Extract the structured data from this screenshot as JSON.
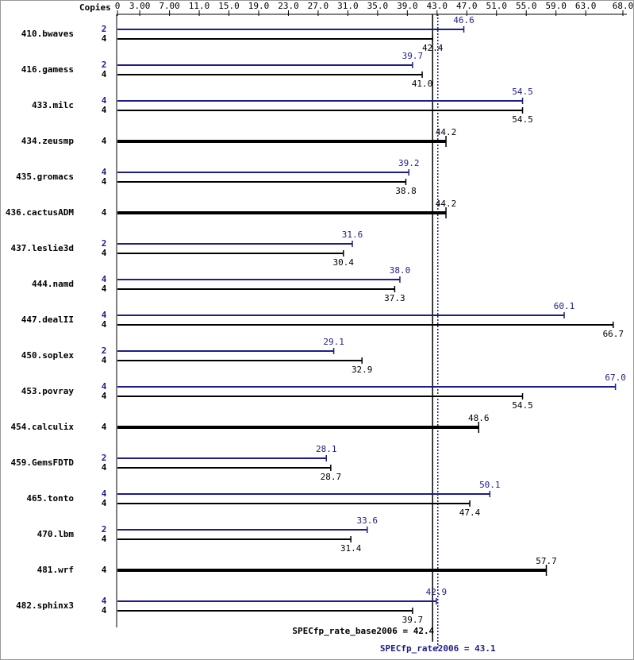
{
  "chart_data": {
    "type": "bar",
    "x_label": "Copies",
    "xlim": [
      0,
      68
    ],
    "xticks": [
      0,
      {
        "value": 3,
        "label": "3.00"
      },
      {
        "value": 7,
        "label": "7.00"
      },
      {
        "value": 11,
        "label": "11.0"
      },
      {
        "value": 15,
        "label": "15.0"
      },
      {
        "value": 19,
        "label": "19.0"
      },
      {
        "value": 23,
        "label": "23.0"
      },
      {
        "value": 27,
        "label": "27.0"
      },
      {
        "value": 31,
        "label": "31.0"
      },
      {
        "value": 35,
        "label": "35.0"
      },
      {
        "value": 39,
        "label": "39.0"
      },
      {
        "value": 43,
        "label": "43.0"
      },
      {
        "value": 47,
        "label": "47.0"
      },
      {
        "value": 51,
        "label": "51.0"
      },
      {
        "value": 55,
        "label": "55.0"
      },
      {
        "value": 59,
        "label": "59.0"
      },
      {
        "value": 63,
        "label": "63.0"
      },
      {
        "value": 68,
        "label": "68.0"
      }
    ],
    "benchmarks": [
      {
        "name": "410.bwaves",
        "rows": [
          {
            "copies": 2,
            "value": 46.6,
            "color": "#1c1c8c"
          },
          {
            "copies": 4,
            "value": 42.4,
            "color": "#000000"
          }
        ]
      },
      {
        "name": "416.gamess",
        "rows": [
          {
            "copies": 2,
            "value": 39.7,
            "color": "#1c1c8c"
          },
          {
            "copies": 4,
            "value": 41,
            "label": "41.0",
            "color": "#000000"
          }
        ]
      },
      {
        "name": "433.milc",
        "rows": [
          {
            "copies": 4,
            "value": 54.5,
            "color": "#1c1c8c"
          },
          {
            "copies": 4,
            "value": 54.5,
            "color": "#000000"
          }
        ]
      },
      {
        "name": "434.zeusmp",
        "rows": [
          {
            "copies": 4,
            "value": 44.2,
            "color": "#000000"
          }
        ]
      },
      {
        "name": "435.gromacs",
        "rows": [
          {
            "copies": 4,
            "value": 39.2,
            "color": "#1c1c8c"
          },
          {
            "copies": 4,
            "value": 38.8,
            "color": "#000000"
          }
        ]
      },
      {
        "name": "436.cactusADM",
        "rows": [
          {
            "copies": 4,
            "value": 44.2,
            "color": "#000000"
          }
        ]
      },
      {
        "name": "437.leslie3d",
        "rows": [
          {
            "copies": 2,
            "value": 31.6,
            "color": "#1c1c8c"
          },
          {
            "copies": 4,
            "value": 30.4,
            "color": "#000000"
          }
        ]
      },
      {
        "name": "444.namd",
        "rows": [
          {
            "copies": 4,
            "value": 38,
            "label": "38.0",
            "color": "#1c1c8c"
          },
          {
            "copies": 4,
            "value": 37.3,
            "color": "#000000"
          }
        ]
      },
      {
        "name": "447.dealII",
        "rows": [
          {
            "copies": 4,
            "value": 60.1,
            "color": "#1c1c8c"
          },
          {
            "copies": 4,
            "value": 66.7,
            "color": "#000000"
          }
        ]
      },
      {
        "name": "450.soplex",
        "rows": [
          {
            "copies": 2,
            "value": 29.1,
            "color": "#1c1c8c"
          },
          {
            "copies": 4,
            "value": 32.9,
            "color": "#000000"
          }
        ]
      },
      {
        "name": "453.povray",
        "rows": [
          {
            "copies": 4,
            "value": 67,
            "label": "67.0",
            "color": "#1c1c8c"
          },
          {
            "copies": 4,
            "value": 54.5,
            "color": "#000000"
          }
        ]
      },
      {
        "name": "454.calculix",
        "rows": [
          {
            "copies": 4,
            "value": 48.6,
            "color": "#000000"
          }
        ]
      },
      {
        "name": "459.GemsFDTD",
        "rows": [
          {
            "copies": 2,
            "value": 28.1,
            "color": "#1c1c8c"
          },
          {
            "copies": 4,
            "value": 28.7,
            "color": "#000000"
          }
        ]
      },
      {
        "name": "465.tonto",
        "rows": [
          {
            "copies": 4,
            "value": 50.1,
            "color": "#1c1c8c"
          },
          {
            "copies": 4,
            "value": 47.4,
            "color": "#000000"
          }
        ]
      },
      {
        "name": "470.lbm",
        "rows": [
          {
            "copies": 2,
            "value": 33.6,
            "color": "#1c1c8c"
          },
          {
            "copies": 4,
            "value": 31.4,
            "color": "#000000"
          }
        ]
      },
      {
        "name": "481.wrf",
        "rows": [
          {
            "copies": 4,
            "value": 57.7,
            "color": "#000000"
          }
        ]
      },
      {
        "name": "482.sphinx3",
        "rows": [
          {
            "copies": 4,
            "value": 42.9,
            "color": "#1c1c8c"
          },
          {
            "copies": 4,
            "value": 39.7,
            "color": "#000000"
          }
        ]
      }
    ],
    "base_mean": {
      "label": "SPECfp_rate_base2006 = 42.4",
      "value": 42.4,
      "color": "#000000"
    },
    "peak_mean": {
      "label": "SPECfp_rate2006 = 43.1",
      "value": 43.1,
      "color": "#1c1c8c"
    }
  }
}
